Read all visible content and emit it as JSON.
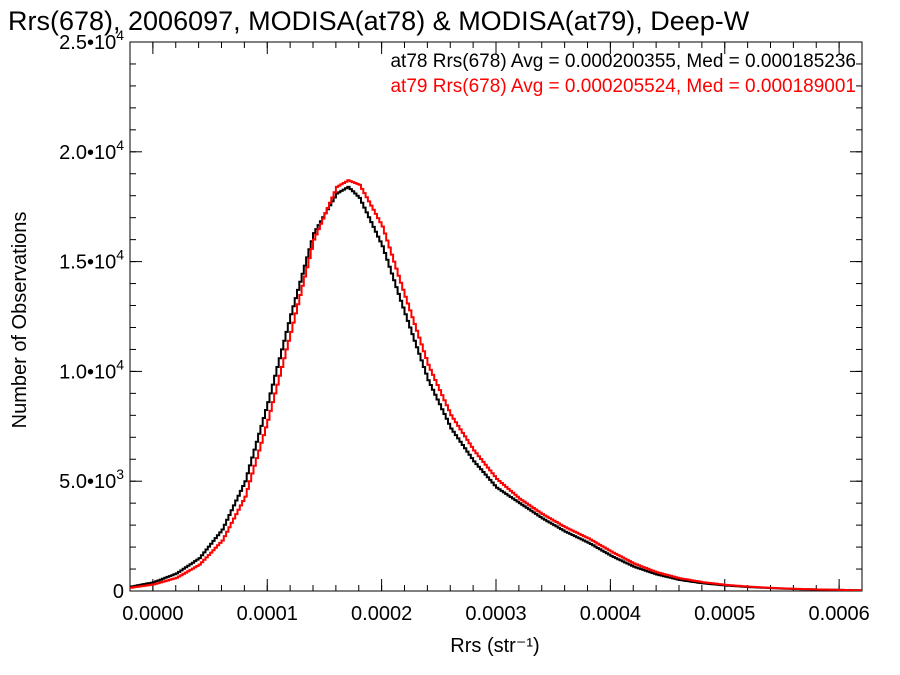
{
  "chart_data": {
    "type": "line",
    "title": "Rrs(678), 2006097, MODISA(at78) & MODISA(at79), Deep-W",
    "xlabel": "Rrs (str⁻¹)",
    "ylabel": "Number of Observations",
    "xlim": [
      -2e-05,
      0.00062
    ],
    "ylim": [
      0,
      25000
    ],
    "x_ticks": [
      {
        "value": 0.0,
        "label": "0.0000"
      },
      {
        "value": 0.0001,
        "label": "0.0001"
      },
      {
        "value": 0.0002,
        "label": "0.0002"
      },
      {
        "value": 0.0003,
        "label": "0.0003"
      },
      {
        "value": 0.0004,
        "label": "0.0004"
      },
      {
        "value": 0.0005,
        "label": "0.0005"
      },
      {
        "value": 0.0006,
        "label": "0.0006"
      }
    ],
    "y_ticks": [
      {
        "value": 0,
        "label": "0"
      },
      {
        "value": 5000,
        "label": "5.0•103"
      },
      {
        "value": 10000,
        "label": "1.0•104"
      },
      {
        "value": 15000,
        "label": "1.5•104"
      },
      {
        "value": 20000,
        "label": "2.0•104"
      },
      {
        "value": 25000,
        "label": "2.5•104"
      }
    ],
    "grid": false,
    "legend": [
      {
        "text": "at78 Rrs(678) Avg = 0.000200355, Med = 0.000185236",
        "color": "#000000"
      },
      {
        "text": "at79 Rrs(678) Avg = 0.000205524, Med = 0.000189001",
        "color": "#ff0000"
      }
    ],
    "series": [
      {
        "color": "#000000",
        "x": [
          -2e-05,
          0.0,
          2e-05,
          4e-05,
          6e-05,
          8e-05,
          0.0001,
          0.00012,
          0.00014,
          0.00016,
          0.00017,
          0.00018,
          0.0002,
          0.00022,
          0.00024,
          0.00026,
          0.00028,
          0.0003,
          0.00032,
          0.00034,
          0.00036,
          0.00038,
          0.0004,
          0.00042,
          0.00044,
          0.00046,
          0.00048,
          0.0005,
          0.00052,
          0.00054,
          0.00056,
          0.00058,
          0.0006,
          0.00062
        ],
        "y": [
          200,
          400,
          800,
          1500,
          2800,
          5000,
          8600,
          12600,
          16300,
          18100,
          18400,
          17900,
          15700,
          12600,
          9600,
          7400,
          5900,
          4700,
          4000,
          3300,
          2700,
          2200,
          1600,
          1100,
          750,
          500,
          350,
          250,
          180,
          130,
          90,
          70,
          50,
          30
        ]
      },
      {
        "color": "#ff0000",
        "x": [
          -2e-05,
          0.0,
          2e-05,
          4e-05,
          6e-05,
          8e-05,
          0.0001,
          0.00012,
          0.00014,
          0.00016,
          0.00017,
          0.00018,
          0.0002,
          0.00022,
          0.00024,
          0.00026,
          0.00028,
          0.0003,
          0.00032,
          0.00034,
          0.00036,
          0.00038,
          0.0004,
          0.00042,
          0.00044,
          0.00046,
          0.00048,
          0.0005,
          0.00052,
          0.00054,
          0.00056,
          0.00058,
          0.0006,
          0.00062
        ],
        "y": [
          150,
          300,
          600,
          1200,
          2300,
          4300,
          7800,
          11800,
          16000,
          18400,
          18700,
          18500,
          16600,
          13400,
          10300,
          8000,
          6400,
          5100,
          4200,
          3500,
          2900,
          2400,
          1800,
          1250,
          850,
          580,
          400,
          280,
          200,
          140,
          100,
          70,
          50,
          30
        ]
      }
    ]
  }
}
